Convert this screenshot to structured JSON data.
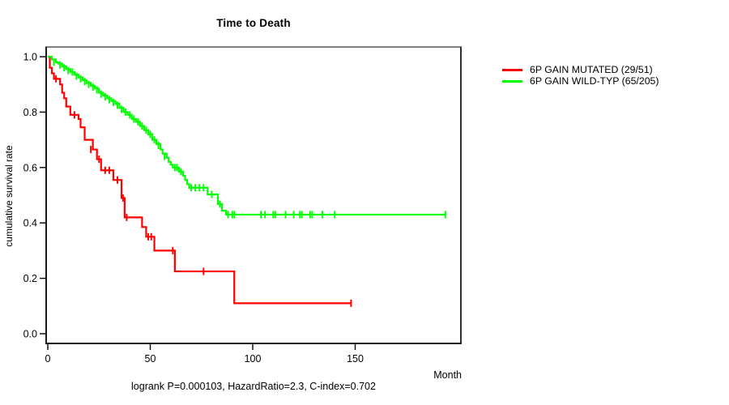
{
  "title": "Time to Death",
  "y_axis": {
    "label": "cumulative survival rate",
    "tick_labels": [
      "0.0",
      "0.2",
      "0.4",
      "0.6",
      "0.8",
      "1.0"
    ],
    "tick_values": [
      0,
      0.2,
      0.4,
      0.6,
      0.8,
      1.0
    ]
  },
  "x_axis": {
    "label": "Month",
    "tick_labels": [
      "0",
      "50",
      "100",
      "150"
    ],
    "tick_values": [
      0,
      50,
      100,
      150
    ]
  },
  "legend": {
    "items": [
      {
        "label": "6P GAIN MUTATED (29/51)",
        "color": "#ff0000"
      },
      {
        "label": "6P GAIN WILD-TYP (65/205)",
        "color": "#00ff00"
      }
    ]
  },
  "footnote": "logrank P=0.000103, HazardRatio=2.3, C-index=0.702",
  "chart_data": {
    "type": "line",
    "subtype": "kaplan-meier-step-survival",
    "title": "Time to Death",
    "xlabel": "Month",
    "ylabel": "cumulative survival rate",
    "xlim": [
      0,
      202
    ],
    "ylim": [
      0,
      1.0
    ],
    "grid": false,
    "legend_position": "right-outside",
    "stats": {
      "logrank_p": "0.000103",
      "hazard_ratio": "2.3",
      "c_index": "0.702"
    },
    "series": [
      {
        "name": "6P GAIN MUTATED (29/51)",
        "color": "#ff0000",
        "events_total": "29/51",
        "steps": [
          [
            0,
            1.0
          ],
          [
            1,
            0.96
          ],
          [
            2,
            0.94
          ],
          [
            3,
            0.92
          ],
          [
            6,
            0.9
          ],
          [
            7,
            0.87
          ],
          [
            8,
            0.85
          ],
          [
            9,
            0.82
          ],
          [
            11,
            0.79
          ],
          [
            15,
            0.775
          ],
          [
            16,
            0.745
          ],
          [
            18,
            0.7
          ],
          [
            22,
            0.665
          ],
          [
            24,
            0.63
          ],
          [
            26,
            0.59
          ],
          [
            32,
            0.555
          ],
          [
            36,
            0.49
          ],
          [
            37.5,
            0.42
          ],
          [
            46,
            0.385
          ],
          [
            48,
            0.35
          ],
          [
            52,
            0.3
          ],
          [
            62,
            0.225
          ],
          [
            91,
            0.11
          ],
          [
            148,
            0.11
          ]
        ],
        "censors": [
          [
            4,
            0.92
          ],
          [
            13,
            0.79
          ],
          [
            21,
            0.665
          ],
          [
            25,
            0.63
          ],
          [
            28,
            0.59
          ],
          [
            30,
            0.59
          ],
          [
            34,
            0.555
          ],
          [
            36.7,
            0.49
          ],
          [
            38.5,
            0.42
          ],
          [
            49,
            0.35
          ],
          [
            50.5,
            0.35
          ],
          [
            61,
            0.3
          ],
          [
            76,
            0.225
          ],
          [
            148,
            0.11
          ]
        ]
      },
      {
        "name": "6P GAIN WILD-TYP (65/205)",
        "color": "#00ff00",
        "events_total": "65/205",
        "steps": [
          [
            0,
            1.0
          ],
          [
            2,
            0.99
          ],
          [
            4,
            0.98
          ],
          [
            5,
            0.975
          ],
          [
            7,
            0.965
          ],
          [
            9,
            0.955
          ],
          [
            11,
            0.945
          ],
          [
            13,
            0.935
          ],
          [
            15,
            0.925
          ],
          [
            17,
            0.915
          ],
          [
            19,
            0.905
          ],
          [
            21,
            0.895
          ],
          [
            23,
            0.885
          ],
          [
            25,
            0.87
          ],
          [
            27,
            0.86
          ],
          [
            29,
            0.85
          ],
          [
            31,
            0.84
          ],
          [
            33,
            0.83
          ],
          [
            35,
            0.815
          ],
          [
            37,
            0.8
          ],
          [
            39,
            0.79
          ],
          [
            41,
            0.775
          ],
          [
            43,
            0.765
          ],
          [
            45,
            0.75
          ],
          [
            47,
            0.735
          ],
          [
            49,
            0.72
          ],
          [
            51,
            0.7
          ],
          [
            53,
            0.685
          ],
          [
            55,
            0.665
          ],
          [
            56,
            0.65
          ],
          [
            58,
            0.635
          ],
          [
            59,
            0.62
          ],
          [
            60,
            0.61
          ],
          [
            61,
            0.6
          ],
          [
            64,
            0.585
          ],
          [
            66,
            0.57
          ],
          [
            67,
            0.555
          ],
          [
            68,
            0.54
          ],
          [
            69,
            0.527
          ],
          [
            78,
            0.503
          ],
          [
            83,
            0.468
          ],
          [
            85,
            0.444
          ],
          [
            87,
            0.43
          ],
          [
            194,
            0.43
          ]
        ],
        "censors": [
          [
            3,
            0.98
          ],
          [
            6,
            0.97
          ],
          [
            8,
            0.96
          ],
          [
            10,
            0.95
          ],
          [
            12,
            0.945
          ],
          [
            14,
            0.93
          ],
          [
            16,
            0.92
          ],
          [
            18,
            0.91
          ],
          [
            20,
            0.9
          ],
          [
            22,
            0.89
          ],
          [
            24,
            0.88
          ],
          [
            26,
            0.865
          ],
          [
            28,
            0.855
          ],
          [
            30,
            0.845
          ],
          [
            32,
            0.835
          ],
          [
            34,
            0.825
          ],
          [
            36,
            0.81
          ],
          [
            38,
            0.8
          ],
          [
            40,
            0.79
          ],
          [
            42,
            0.775
          ],
          [
            44,
            0.765
          ],
          [
            46,
            0.75
          ],
          [
            48,
            0.735
          ],
          [
            50,
            0.72
          ],
          [
            52,
            0.7
          ],
          [
            54,
            0.68
          ],
          [
            57,
            0.64
          ],
          [
            62,
            0.6
          ],
          [
            63,
            0.6
          ],
          [
            65,
            0.585
          ],
          [
            70,
            0.527
          ],
          [
            72,
            0.527
          ],
          [
            74,
            0.527
          ],
          [
            76,
            0.527
          ],
          [
            80,
            0.503
          ],
          [
            84,
            0.468
          ],
          [
            88,
            0.43
          ],
          [
            90,
            0.43
          ],
          [
            91,
            0.43
          ],
          [
            104,
            0.43
          ],
          [
            106,
            0.43
          ],
          [
            110,
            0.43
          ],
          [
            111,
            0.43
          ],
          [
            116,
            0.43
          ],
          [
            120,
            0.43
          ],
          [
            123,
            0.43
          ],
          [
            124,
            0.43
          ],
          [
            128,
            0.43
          ],
          [
            129,
            0.43
          ],
          [
            134,
            0.43
          ],
          [
            140,
            0.43
          ],
          [
            194,
            0.43
          ]
        ]
      }
    ]
  }
}
